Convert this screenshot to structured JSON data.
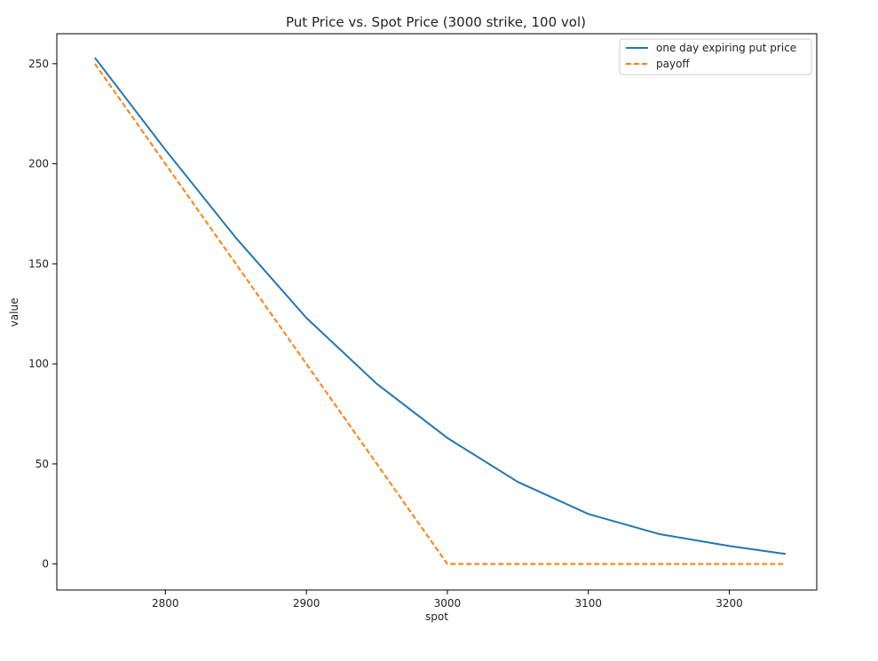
{
  "chart_data": {
    "type": "line",
    "title": "Put Price vs. Spot Price (3000 strike, 100 vol)",
    "xlabel": "spot",
    "ylabel": "value",
    "xlim": [
      2723,
      3262
    ],
    "ylim": [
      -13,
      265
    ],
    "xticks": [
      2800,
      2900,
      3000,
      3100,
      3200
    ],
    "yticks": [
      0,
      50,
      100,
      150,
      200,
      250
    ],
    "grid": false,
    "legend_position": "top-right",
    "series": [
      {
        "name": "one day expiring put price",
        "color": "#1f77b4",
        "style": "solid",
        "x": [
          2750,
          2800,
          2850,
          2900,
          2950,
          3000,
          3050,
          3100,
          3150,
          3200,
          3240
        ],
        "y": [
          253,
          207,
          163,
          123,
          90,
          63,
          41,
          25,
          15,
          9,
          5
        ]
      },
      {
        "name": "payoff",
        "color": "#ff7f0e",
        "style": "dashed",
        "x": [
          2750,
          3000,
          3240
        ],
        "y": [
          250,
          0,
          0
        ]
      }
    ]
  }
}
